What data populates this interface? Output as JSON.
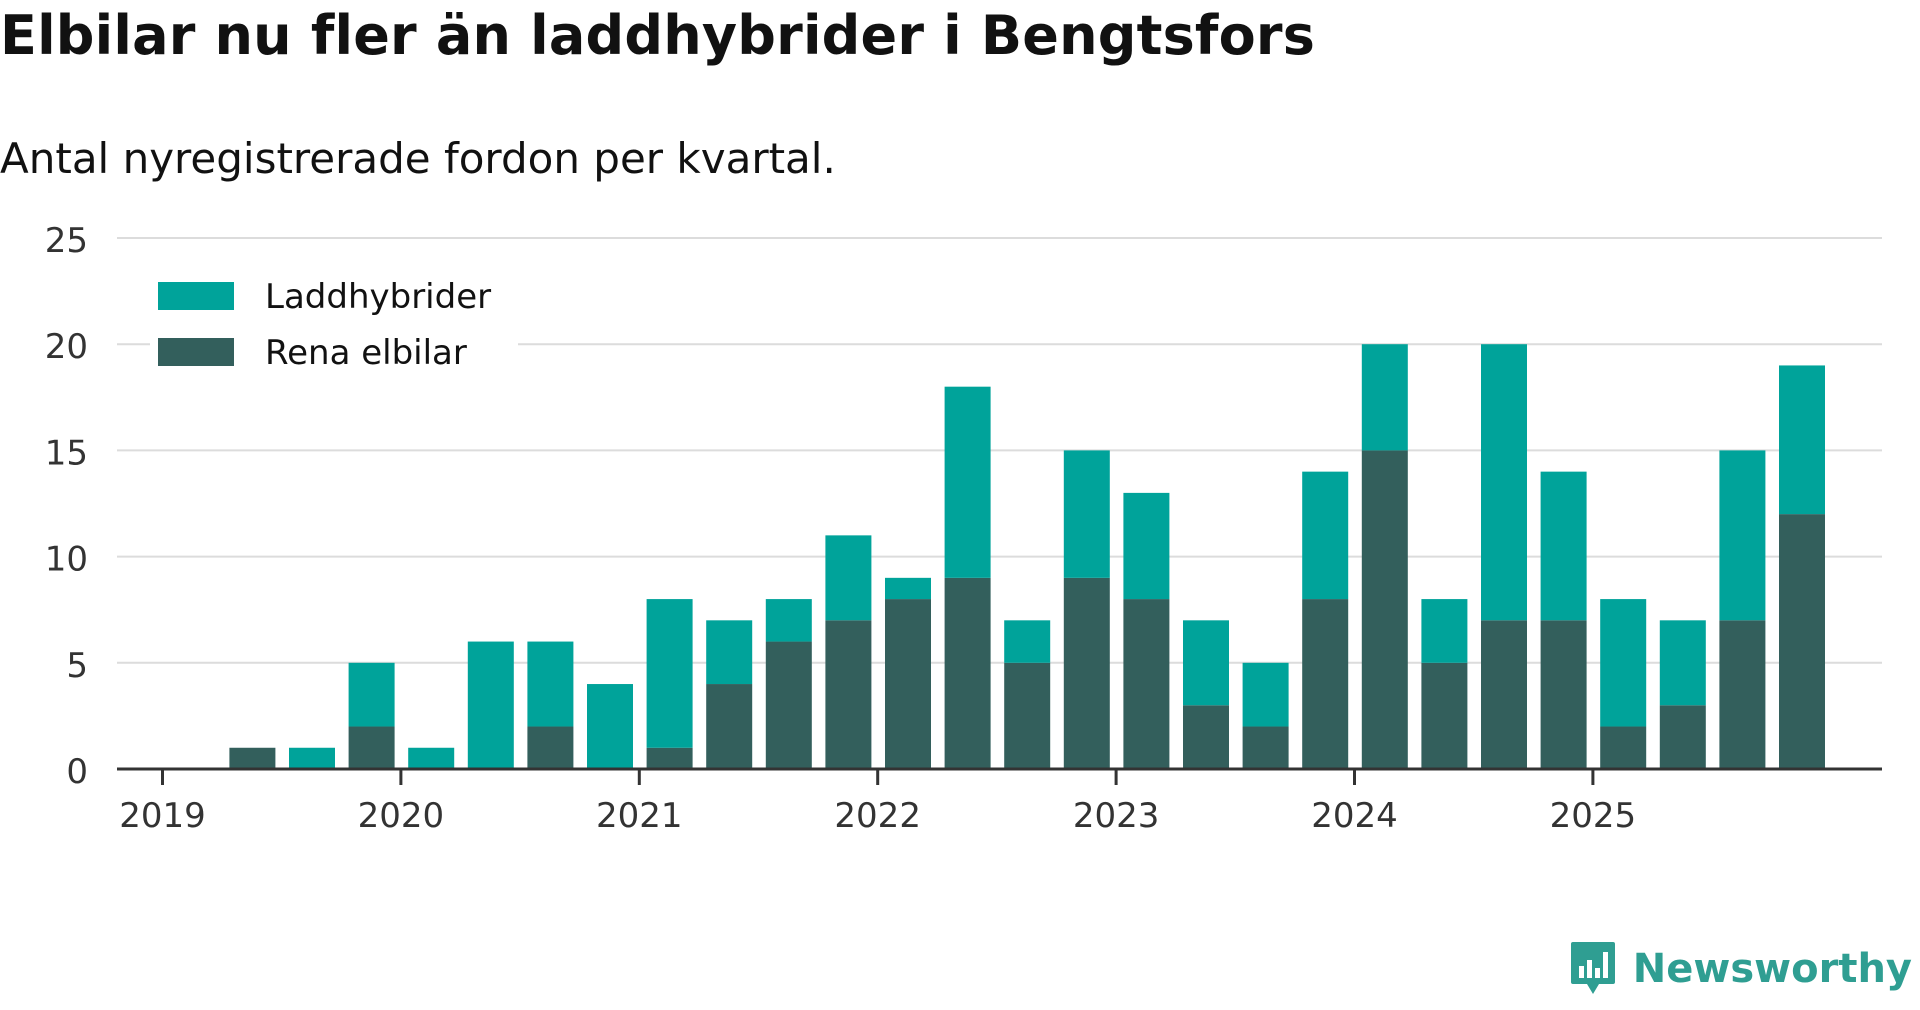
{
  "header": {
    "title": "Elbilar nu fler än laddhybrider i Bengtsfors",
    "subtitle": "Antal nyregistrerade fordon per kvartal."
  },
  "brand": {
    "name": "Newsworthy"
  },
  "colors": {
    "laddhybrider": "#00a39a",
    "rena_elbilar": "#335f5c",
    "grid": "#dcdcdc",
    "axis": "#333333"
  },
  "chart_data": {
    "type": "bar",
    "stacked": true,
    "title": "Elbilar nu fler än laddhybrider i Bengtsfors",
    "subtitle": "Antal nyregistrerade fordon per kvartal.",
    "xlabel": "",
    "ylabel": "",
    "ylim": [
      0,
      25
    ],
    "yticks": [
      0,
      5,
      10,
      15,
      20,
      25
    ],
    "xtick_labels": [
      "2019",
      "2020",
      "2021",
      "2022",
      "2023",
      "2024",
      "2025"
    ],
    "legend_position": "top-left",
    "categories": [
      "2019 Q1",
      "2019 Q2",
      "2019 Q3",
      "2019 Q4",
      "2020 Q1",
      "2020 Q2",
      "2020 Q3",
      "2020 Q4",
      "2021 Q1",
      "2021 Q2",
      "2021 Q3",
      "2021 Q4",
      "2022 Q1",
      "2022 Q2",
      "2022 Q3",
      "2022 Q4",
      "2023 Q1",
      "2023 Q2",
      "2023 Q3",
      "2023 Q4",
      "2024 Q1",
      "2024 Q2",
      "2024 Q3",
      "2024 Q4",
      "2025 Q1",
      "2025 Q2",
      "2025 Q3",
      "2025 Q4"
    ],
    "series": [
      {
        "name": "Rena elbilar",
        "values": [
          0,
          1,
          0,
          2,
          0,
          0,
          2,
          0,
          1,
          4,
          6,
          7,
          8,
          9,
          5,
          9,
          8,
          3,
          2,
          8,
          15,
          5,
          7,
          7,
          2,
          3,
          7,
          12
        ]
      },
      {
        "name": "Laddhybrider",
        "values": [
          0,
          0,
          1,
          3,
          1,
          6,
          4,
          4,
          7,
          3,
          2,
          4,
          1,
          9,
          2,
          6,
          5,
          4,
          3,
          6,
          5,
          3,
          13,
          7,
          6,
          4,
          8,
          7
        ]
      }
    ]
  }
}
